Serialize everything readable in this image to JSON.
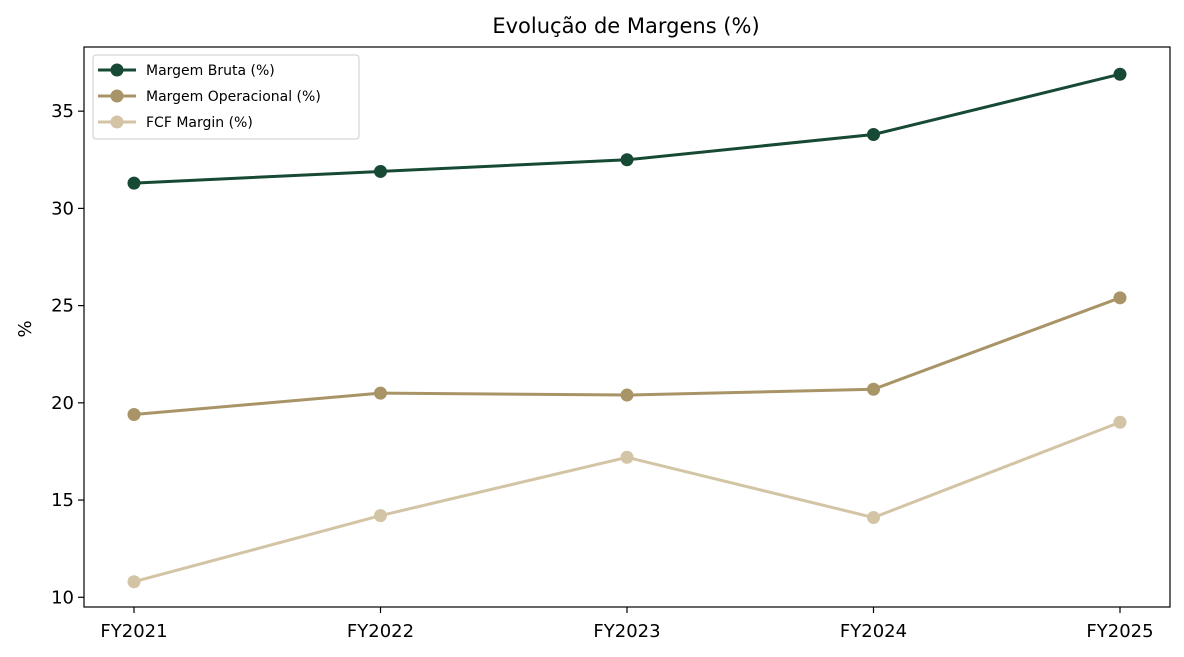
{
  "chart_data": {
    "type": "line",
    "title": "Evolução de Margens (%)",
    "xlabel": "",
    "ylabel": "%",
    "categories": [
      "FY2021",
      "FY2022",
      "FY2023",
      "FY2024",
      "FY2025"
    ],
    "ylim": [
      9.5,
      38.3
    ],
    "yticks": [
      10,
      15,
      20,
      25,
      30,
      35
    ],
    "grid": false,
    "legend_position": "top-left",
    "series": [
      {
        "name": "Margem Bruta (%)",
        "color": "#174a35",
        "values": [
          31.3,
          31.9,
          32.5,
          33.8,
          36.9
        ]
      },
      {
        "name": "Margem Operacional (%)",
        "color": "#a89467",
        "values": [
          19.4,
          20.5,
          20.4,
          20.7,
          25.4
        ]
      },
      {
        "name": "FCF Margin (%)",
        "color": "#d3c4a5",
        "values": [
          10.8,
          14.2,
          17.2,
          14.1,
          19.0
        ]
      }
    ]
  }
}
